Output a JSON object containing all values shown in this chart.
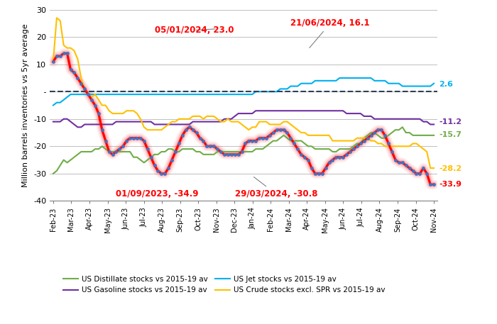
{
  "ylabel": "Million barrels inventories vs 5yr average",
  "ylim": [
    -40,
    30
  ],
  "yticks": [
    -40,
    -30,
    -20,
    -10,
    0,
    10,
    20,
    30
  ],
  "x_labels": [
    "Feb-23",
    "Mar-23",
    "Apr-23",
    "May-23",
    "Jun-23",
    "Jul-23",
    "Aug-23",
    "Sep-23",
    "Oct-23",
    "Nov-23",
    "Dec-23",
    "Jan-24",
    "Feb-24",
    "Mar-24",
    "Apr-24",
    "May-24",
    "Jun-24",
    "Jul-24",
    "Aug-24",
    "Sep-24",
    "Oct-24",
    "Nov-24"
  ],
  "background_color": "#ffffff",
  "grid_color": "#c0c0c0",
  "total_color": "red",
  "distillate_color": "#70ad47",
  "gasoline_color": "#7030a0",
  "jet_color": "#00b0f0",
  "crude_color": "#ffc000",
  "legend_entries": [
    "US Distillate stocks vs 2015-19 av",
    "US Gasoline stocks vs 2015-19 av",
    "US Jet stocks vs 2015-19 av",
    "US Crude stocks excl. SPR vs 2015-19 av"
  ],
  "distillate": [
    -30,
    -29,
    -27,
    -25,
    -26,
    -25,
    -24,
    -23,
    -22,
    -22,
    -22,
    -22,
    -21,
    -21,
    -20,
    -21,
    -22,
    -22,
    -22,
    -22,
    -22,
    -22,
    -22,
    -24,
    -24,
    -25,
    -26,
    -25,
    -24,
    -23,
    -23,
    -22,
    -22,
    -21,
    -21,
    -22,
    -22,
    -21,
    -21,
    -21,
    -21,
    -22,
    -22,
    -23,
    -23,
    -23,
    -23,
    -22,
    -22,
    -22,
    -22,
    -22,
    -22,
    -22,
    -22,
    -22,
    -22,
    -22,
    -21,
    -21,
    -21,
    -20,
    -19,
    -18,
    -18,
    -17,
    -16,
    -17,
    -18,
    -18,
    -18,
    -18,
    -19,
    -20,
    -20,
    -21,
    -21,
    -21,
    -21,
    -21,
    -22,
    -22,
    -21,
    -21,
    -21,
    -21,
    -20,
    -19,
    -19,
    -17,
    -16,
    -15,
    -15,
    -16,
    -17,
    -17,
    -16,
    -15,
    -14,
    -14,
    -13,
    -15,
    -15,
    -16,
    -16,
    -16,
    -16,
    -16,
    -16,
    -16
  ],
  "gasoline": [
    -11,
    -11,
    -11,
    -10,
    -10,
    -11,
    -12,
    -13,
    -13,
    -12,
    -12,
    -12,
    -12,
    -12,
    -12,
    -12,
    -12,
    -12,
    -11,
    -11,
    -11,
    -11,
    -11,
    -11,
    -11,
    -11,
    -11,
    -11,
    -11,
    -12,
    -12,
    -12,
    -12,
    -12,
    -12,
    -12,
    -12,
    -12,
    -12,
    -12,
    -11,
    -11,
    -11,
    -11,
    -11,
    -11,
    -11,
    -11,
    -11,
    -10,
    -10,
    -10,
    -9,
    -8,
    -8,
    -8,
    -8,
    -8,
    -7,
    -7,
    -7,
    -7,
    -7,
    -7,
    -7,
    -7,
    -7,
    -7,
    -7,
    -7,
    -7,
    -7,
    -7,
    -7,
    -7,
    -7,
    -7,
    -7,
    -7,
    -7,
    -7,
    -7,
    -7,
    -7,
    -8,
    -8,
    -8,
    -8,
    -8,
    -9,
    -9,
    -9,
    -10,
    -10,
    -10,
    -10,
    -10,
    -10,
    -10,
    -10,
    -10,
    -10,
    -10,
    -10,
    -10,
    -10,
    -11,
    -11,
    -12,
    -12
  ],
  "jet": [
    -5,
    -4,
    -4,
    -3,
    -2,
    -1,
    -1,
    -1,
    -1,
    -1,
    -1,
    -1,
    -1,
    -1,
    -1,
    -1,
    -1,
    -1,
    -1,
    -1,
    -1,
    -1,
    -1,
    -1,
    -1,
    -1,
    -1,
    -1,
    -1,
    -1,
    -1,
    -1,
    -1,
    -1,
    -1,
    -1,
    -1,
    -1,
    -1,
    -1,
    -1,
    -1,
    -1,
    -1,
    -1,
    -1,
    -1,
    -1,
    -1,
    -1,
    -1,
    -1,
    -1,
    -1,
    -1,
    -1,
    -1,
    -1,
    0,
    0,
    0,
    0,
    0,
    0,
    0,
    1,
    1,
    1,
    2,
    2,
    2,
    3,
    3,
    3,
    3,
    4,
    4,
    4,
    4,
    4,
    4,
    4,
    5,
    5,
    5,
    5,
    5,
    5,
    5,
    5,
    5,
    5,
    4,
    4,
    4,
    4,
    3,
    3,
    3,
    3,
    2,
    2,
    2,
    2,
    2,
    2,
    2,
    2,
    2,
    3
  ],
  "crude": [
    11,
    27,
    26,
    17,
    16,
    16,
    15,
    12,
    5,
    1,
    -1,
    -2,
    -1,
    -3,
    -5,
    -5,
    -7,
    -8,
    -8,
    -8,
    -8,
    -7,
    -7,
    -7,
    -8,
    -10,
    -13,
    -14,
    -14,
    -14,
    -14,
    -14,
    -13,
    -12,
    -11,
    -11,
    -10,
    -10,
    -10,
    -10,
    -9,
    -9,
    -9,
    -10,
    -9,
    -9,
    -9,
    -10,
    -11,
    -11,
    -10,
    -11,
    -11,
    -11,
    -12,
    -13,
    -14,
    -13,
    -13,
    -11,
    -11,
    -11,
    -12,
    -12,
    -12,
    -12,
    -11,
    -11,
    -12,
    -13,
    -14,
    -15,
    -15,
    -16,
    -16,
    -16,
    -16,
    -16,
    -16,
    -16,
    -18,
    -18,
    -18,
    -18,
    -18,
    -18,
    -18,
    -17,
    -17,
    -17,
    -17,
    -18,
    -18,
    -19,
    -19,
    -20,
    -20,
    -20,
    -20,
    -20,
    -20,
    -20,
    -20,
    -19,
    -19,
    -20,
    -21,
    -22,
    -28,
    -28
  ],
  "total": [
    11,
    13,
    13,
    14,
    14,
    8,
    7,
    5,
    3,
    1,
    -1,
    -3,
    -5,
    -8,
    -14,
    -18,
    -22,
    -23,
    -22,
    -21,
    -20,
    -18,
    -17,
    -17,
    -17,
    -17,
    -18,
    -21,
    -24,
    -27,
    -29,
    -30,
    -30,
    -28,
    -25,
    -22,
    -19,
    -16,
    -14,
    -13,
    -14,
    -15,
    -17,
    -18,
    -20,
    -20,
    -20,
    -21,
    -22,
    -23,
    -23,
    -23,
    -23,
    -23,
    -22,
    -19,
    -18,
    -18,
    -18,
    -17,
    -17,
    -17,
    -16,
    -15,
    -14,
    -14,
    -14,
    -15,
    -17,
    -19,
    -21,
    -23,
    -24,
    -25,
    -28,
    -30,
    -30,
    -30,
    -28,
    -26,
    -25,
    -24,
    -24,
    -24,
    -23,
    -22,
    -21,
    -20,
    -19,
    -18,
    -17,
    -16,
    -15,
    -14,
    -14,
    -16,
    -19,
    -22,
    -25,
    -26,
    -26,
    -27,
    -28,
    -29,
    -30,
    -30,
    -28,
    -30,
    -34,
    -34
  ],
  "n_points": 110
}
